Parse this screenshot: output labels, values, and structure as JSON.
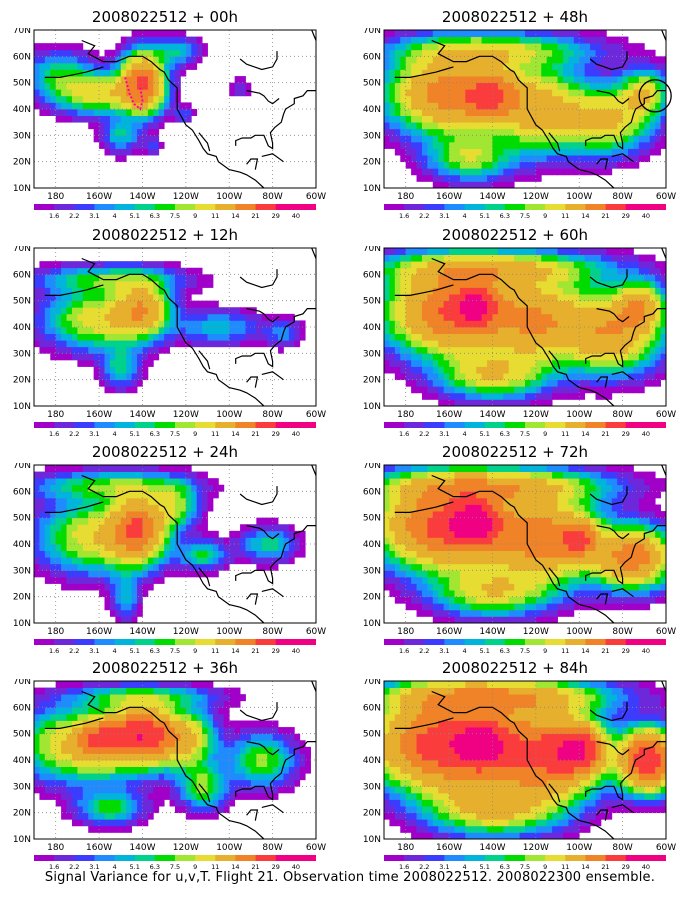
{
  "figure": {
    "caption": "Signal Variance for u,v,T. Flight 21. Observation time 2008022512. 2008022300 ensemble."
  },
  "axes": {
    "lat_ticks": [
      "10N",
      "20N",
      "30N",
      "40N",
      "50N",
      "60N",
      "70N"
    ],
    "lon_ticks": [
      "180",
      "160W",
      "140W",
      "120W",
      "100W",
      "80W",
      "60W"
    ],
    "lat_range": [
      10,
      70
    ],
    "lon_range": [
      -190,
      -60
    ],
    "grid": "dotted",
    "coastlines": true
  },
  "colorbar": {
    "labels": [
      "1.6",
      "2.2",
      "3.1",
      "4",
      "5.1",
      "6.3",
      "7.5",
      "9",
      "11",
      "14",
      "21",
      "29",
      "40"
    ],
    "colors": [
      "#a000c8",
      "#6e28dc",
      "#3c3cff",
      "#1e8cff",
      "#00b4dc",
      "#00d28c",
      "#00dc00",
      "#a0e632",
      "#e6dc32",
      "#e6af2d",
      "#f08228",
      "#fa3c3c",
      "#f00082"
    ]
  },
  "chart_data": [
    {
      "type": "heatmap",
      "title": "2008022512 + 00h",
      "z_range": [
        1.6,
        40
      ],
      "blobs": [
        {
          "lon": -160,
          "lat": 46,
          "sx": 18,
          "sy": 7,
          "amp": 1.0
        },
        {
          "lon": -140,
          "lat": 50,
          "sx": 9,
          "sy": 10,
          "amp": 2.3
        },
        {
          "lon": -178,
          "lat": 53,
          "sx": 14,
          "sy": 8,
          "amp": 0.55
        },
        {
          "lon": -150,
          "lat": 30,
          "sx": 8,
          "sy": 6,
          "amp": 0.45
        },
        {
          "lon": -125,
          "lat": 62,
          "sx": 10,
          "sy": 5,
          "amp": 0.45
        },
        {
          "lon": -121,
          "lat": 38,
          "sx": 4,
          "sy": 3,
          "amp": 0.25
        },
        {
          "lon": -95,
          "lat": 48,
          "sx": 4,
          "sy": 3,
          "amp": 0.2
        },
        {
          "lon": -135,
          "lat": 26,
          "sx": 4,
          "sy": 3,
          "amp": 0.2
        }
      ]
    },
    {
      "type": "heatmap",
      "title": "2008022512 + 12h",
      "z_range": [
        1.6,
        40
      ],
      "blobs": [
        {
          "lon": -160,
          "lat": 43,
          "sx": 22,
          "sy": 10,
          "amp": 1.0
        },
        {
          "lon": -140,
          "lat": 47,
          "sx": 11,
          "sy": 9,
          "amp": 1.4
        },
        {
          "lon": -155,
          "lat": 58,
          "sx": 30,
          "sy": 5,
          "amp": 0.6
        },
        {
          "lon": -150,
          "lat": 25,
          "sx": 8,
          "sy": 7,
          "amp": 0.5
        },
        {
          "lon": -105,
          "lat": 40,
          "sx": 18,
          "sy": 6,
          "amp": 0.4
        },
        {
          "lon": -75,
          "lat": 38,
          "sx": 8,
          "sy": 5,
          "amp": 0.3
        }
      ]
    },
    {
      "type": "heatmap",
      "title": "2008022512 + 24h",
      "z_range": [
        1.6,
        40
      ],
      "blobs": [
        {
          "lon": -160,
          "lat": 43,
          "sx": 24,
          "sy": 12,
          "amp": 1.05
        },
        {
          "lon": -142,
          "lat": 46,
          "sx": 11,
          "sy": 11,
          "amp": 2.0
        },
        {
          "lon": -155,
          "lat": 62,
          "sx": 32,
          "sy": 5,
          "amp": 0.65
        },
        {
          "lon": -125,
          "lat": 55,
          "sx": 10,
          "sy": 8,
          "amp": 0.7
        },
        {
          "lon": -112,
          "lat": 36,
          "sx": 10,
          "sy": 5,
          "amp": 0.55
        },
        {
          "lon": -82,
          "lat": 40,
          "sx": 12,
          "sy": 6,
          "amp": 0.5
        },
        {
          "lon": -148,
          "lat": 20,
          "sx": 6,
          "sy": 8,
          "amp": 0.4
        }
      ]
    },
    {
      "type": "heatmap",
      "title": "2008022512 + 36h",
      "z_range": [
        1.6,
        40
      ],
      "blobs": [
        {
          "lon": -165,
          "lat": 46,
          "sx": 28,
          "sy": 12,
          "amp": 1.3
        },
        {
          "lon": -140,
          "lat": 50,
          "sx": 13,
          "sy": 9,
          "amp": 2.7
        },
        {
          "lon": -160,
          "lat": 48,
          "sx": 8,
          "sy": 6,
          "amp": 1.5
        },
        {
          "lon": -120,
          "lat": 48,
          "sx": 12,
          "sy": 10,
          "amp": 1.1
        },
        {
          "lon": -112,
          "lat": 30,
          "sx": 10,
          "sy": 8,
          "amp": 0.7
        },
        {
          "lon": -85,
          "lat": 40,
          "sx": 14,
          "sy": 9,
          "amp": 0.7
        },
        {
          "lon": -155,
          "lat": 22,
          "sx": 14,
          "sy": 6,
          "amp": 0.6
        },
        {
          "lon": -140,
          "lat": 64,
          "sx": 30,
          "sy": 4,
          "amp": 0.6
        }
      ]
    },
    {
      "type": "heatmap",
      "title": "2008022512 + 48h",
      "z_range": [
        1.6,
        40
      ],
      "blobs": [
        {
          "lon": -160,
          "lat": 46,
          "sx": 24,
          "sy": 13,
          "amp": 2.0
        },
        {
          "lon": -140,
          "lat": 45,
          "sx": 12,
          "sy": 9,
          "amp": 1.5
        },
        {
          "lon": -118,
          "lat": 40,
          "sx": 18,
          "sy": 14,
          "amp": 1.3
        },
        {
          "lon": -88,
          "lat": 36,
          "sx": 18,
          "sy": 11,
          "amp": 1.2
        },
        {
          "lon": -140,
          "lat": 62,
          "sx": 40,
          "sy": 6,
          "amp": 0.9
        },
        {
          "lon": -150,
          "lat": 22,
          "sx": 18,
          "sy": 8,
          "amp": 0.8
        },
        {
          "lon": -70,
          "lat": 46,
          "sx": 10,
          "sy": 8,
          "amp": 1.0
        }
      ]
    },
    {
      "type": "heatmap",
      "title": "2008022512 + 60h",
      "z_range": [
        1.6,
        40
      ],
      "blobs": [
        {
          "lon": -158,
          "lat": 46,
          "sx": 26,
          "sy": 14,
          "amp": 2.4
        },
        {
          "lon": -148,
          "lat": 48,
          "sx": 8,
          "sy": 6,
          "amp": 2.2
        },
        {
          "lon": -118,
          "lat": 42,
          "sx": 22,
          "sy": 14,
          "amp": 1.5
        },
        {
          "lon": -85,
          "lat": 38,
          "sx": 20,
          "sy": 13,
          "amp": 1.5
        },
        {
          "lon": -140,
          "lat": 62,
          "sx": 45,
          "sy": 6,
          "amp": 1.2
        },
        {
          "lon": -140,
          "lat": 22,
          "sx": 22,
          "sy": 8,
          "amp": 1.0
        },
        {
          "lon": -72,
          "lat": 48,
          "sx": 10,
          "sy": 8,
          "amp": 1.3
        }
      ]
    },
    {
      "type": "heatmap",
      "title": "2008022512 + 72h",
      "z_range": [
        1.6,
        40
      ],
      "blobs": [
        {
          "lon": -160,
          "lat": 47,
          "sx": 28,
          "sy": 14,
          "amp": 2.7
        },
        {
          "lon": -148,
          "lat": 48,
          "sx": 9,
          "sy": 7,
          "amp": 2.6
        },
        {
          "lon": -115,
          "lat": 42,
          "sx": 22,
          "sy": 14,
          "amp": 1.9
        },
        {
          "lon": -100,
          "lat": 42,
          "sx": 7,
          "sy": 6,
          "amp": 1.8
        },
        {
          "lon": -75,
          "lat": 35,
          "sx": 16,
          "sy": 10,
          "amp": 2.0
        },
        {
          "lon": -140,
          "lat": 62,
          "sx": 45,
          "sy": 6,
          "amp": 1.3
        },
        {
          "lon": -140,
          "lat": 22,
          "sx": 24,
          "sy": 8,
          "amp": 1.0
        }
      ]
    },
    {
      "type": "heatmap",
      "title": "2008022512 + 84h",
      "z_range": [
        1.6,
        40
      ],
      "blobs": [
        {
          "lon": -160,
          "lat": 46,
          "sx": 30,
          "sy": 15,
          "amp": 3.0
        },
        {
          "lon": -145,
          "lat": 46,
          "sx": 9,
          "sy": 7,
          "amp": 2.8
        },
        {
          "lon": -115,
          "lat": 42,
          "sx": 22,
          "sy": 15,
          "amp": 2.3
        },
        {
          "lon": -100,
          "lat": 44,
          "sx": 10,
          "sy": 8,
          "amp": 2.4
        },
        {
          "lon": -68,
          "lat": 40,
          "sx": 12,
          "sy": 10,
          "amp": 3.0
        },
        {
          "lon": -140,
          "lat": 64,
          "sx": 45,
          "sy": 6,
          "amp": 1.6
        },
        {
          "lon": -140,
          "lat": 22,
          "sx": 26,
          "sy": 9,
          "amp": 1.2
        }
      ]
    }
  ],
  "annotations": {
    "panel_00h": "dotted magenta observation region",
    "panel_48h": "black circle near 65W 45N"
  }
}
